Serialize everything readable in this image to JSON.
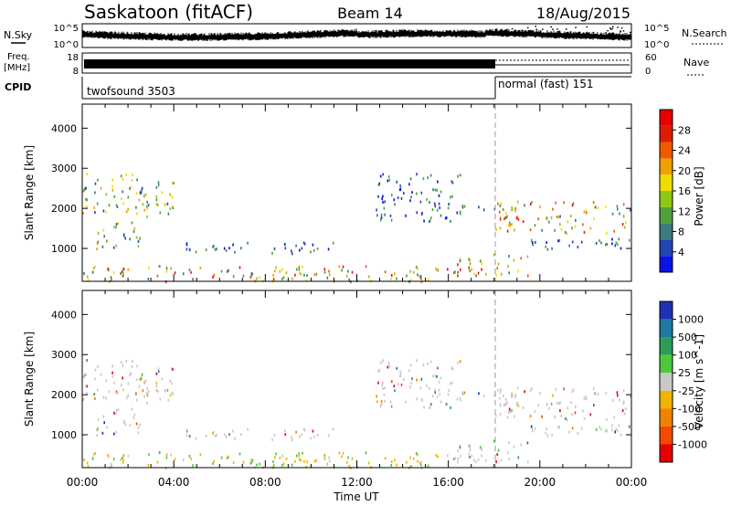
{
  "header": {
    "station": "Saskatoon (fitACF)",
    "beam": "Beam 14",
    "date": "18/Aug/2015"
  },
  "summary_panels": {
    "nsky_label": "N.Sky",
    "nsky_tick_top": "10^5",
    "nsky_tick_bottom": "10^0",
    "nsearch_label": "N.Search",
    "nsearch_tick_top": "10^5",
    "nsearch_tick_bottom": "10^0",
    "freq_label_line1": "Freq.",
    "freq_label_line2": "[MHz]",
    "freq_tick_top": "18",
    "freq_tick_bottom": "8",
    "nave_label": "Nave",
    "nave_tick_top": "60",
    "nave_tick_bottom": "0",
    "cpid_label": "CPID",
    "cpid_segments": [
      {
        "name": "twofsound 3503",
        "start_hour": 0,
        "end_hour": 18
      },
      {
        "name": "normal (fast) 151",
        "start_hour": 18,
        "end_hour": 24
      }
    ]
  },
  "chart_data": [
    {
      "type": "heatmap",
      "quantity": "Power",
      "xlabel": "Time UT",
      "ylabel": "Slant Range [km]",
      "xlim_hours": [
        0,
        24
      ],
      "ylim": [
        180,
        4600
      ],
      "x_ticks": [
        "00:00",
        "04:00",
        "08:00",
        "12:00",
        "16:00",
        "20:00",
        "00:00"
      ],
      "y_ticks": [
        1000,
        2000,
        3000,
        4000
      ],
      "colorbar": {
        "label": "Power [dB]",
        "ticks": [
          "4",
          "8",
          "12",
          "16",
          "20",
          "24",
          "28"
        ],
        "colors": [
          "#0a14e6",
          "#2246b4",
          "#3c7c7c",
          "#50a03c",
          "#8cc814",
          "#f0dc00",
          "#f0a000",
          "#f05a00",
          "#dc1e00",
          "#e60000"
        ]
      },
      "echo_regions": [
        {
          "t0": 0.0,
          "t1": 4.0,
          "r0": 1800,
          "r1": 2900,
          "level": "medium"
        },
        {
          "t0": 0.5,
          "t1": 2.5,
          "r0": 1000,
          "r1": 1700,
          "level": "medium"
        },
        {
          "t0": 4.5,
          "t1": 11.0,
          "r0": 900,
          "r1": 1200,
          "level": "low"
        },
        {
          "t0": 0.0,
          "t1": 16.0,
          "r0": 200,
          "r1": 600,
          "level": "high"
        },
        {
          "t0": 12.8,
          "t1": 16.5,
          "r0": 1700,
          "r1": 2900,
          "level": "low"
        },
        {
          "t0": 16.0,
          "t1": 18.0,
          "r0": 1900,
          "r1": 2100,
          "level": "low"
        },
        {
          "t0": 16.0,
          "t1": 19.5,
          "r0": 350,
          "r1": 900,
          "level": "high"
        },
        {
          "t0": 18.0,
          "t1": 24.0,
          "r0": 1400,
          "r1": 2200,
          "level": "high"
        },
        {
          "t0": 19.0,
          "t1": 24.0,
          "r0": 1000,
          "r1": 1300,
          "level": "low"
        }
      ]
    },
    {
      "type": "heatmap",
      "quantity": "Velocity",
      "xlabel": "Time UT",
      "ylabel": "Slant Range [km]",
      "xlim_hours": [
        0,
        24
      ],
      "ylim": [
        180,
        4600
      ],
      "x_ticks": [
        "00:00",
        "04:00",
        "08:00",
        "12:00",
        "16:00",
        "20:00",
        "00:00"
      ],
      "y_ticks": [
        1000,
        2000,
        3000,
        4000
      ],
      "colorbar": {
        "label": "Velocity [m s^-1]",
        "ticks": [
          "1000",
          "500",
          "100",
          "25",
          "-25",
          "-100",
          "-500",
          "-1000"
        ],
        "colors": [
          "#1e32b4",
          "#1e78a0",
          "#2d9b5a",
          "#4bc83c",
          "#c8c8c8",
          "#f0b400",
          "#f08200",
          "#f04b00",
          "#e60000"
        ]
      }
    }
  ]
}
